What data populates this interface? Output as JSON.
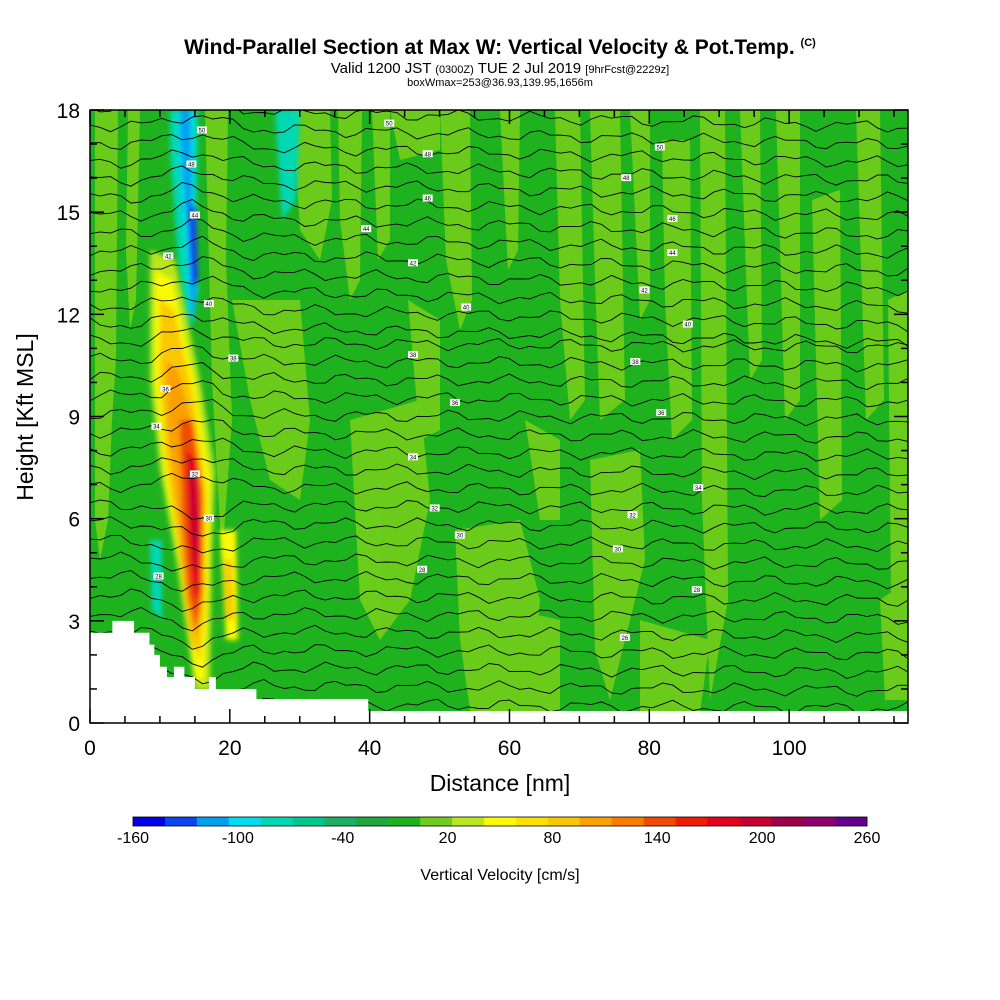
{
  "title": {
    "main": "Wind-Parallel Section at Max W: Vertical Velocity & Pot.Temp.",
    "copyright": "(C)",
    "valid_prefix": "Valid 1200 JST",
    "valid_utc": "(0300Z)",
    "valid_date": "TUE 2 Jul 2019",
    "forecast": "[9hrFcst@2229z]",
    "box_wmax": "boxWmax=253@36.93,139.95,1656m"
  },
  "colors": {
    "terrain": "#ffffff",
    "contour": "#000000",
    "background_w": "#1fb21f",
    "light_w": "#6fcd1b"
  },
  "chart_data": {
    "type": "heatmap",
    "xlabel": "Distance [nm]",
    "ylabel": "Height [Kft MSL]",
    "xlim": [
      0,
      117
    ],
    "ylim": [
      0,
      18
    ],
    "x_ticks": [
      0,
      20,
      40,
      60,
      80,
      100
    ],
    "y_ticks": [
      0,
      3,
      6,
      9,
      12,
      15,
      18
    ],
    "colorbar": {
      "label": "Vertical Velocity [cm/s]",
      "min": -160,
      "max": 260,
      "tick_values": [
        -160,
        -100,
        -40,
        20,
        80,
        140,
        200,
        260
      ],
      "tick_labels": [
        "-160",
        "-100",
        "-40",
        "20",
        "80",
        "140",
        "200",
        "260"
      ],
      "colors": [
        "#0000e6",
        "#0a46f0",
        "#00a0f0",
        "#00dcf0",
        "#00d8b4",
        "#00c88c",
        "#1cb064",
        "#1fa63c",
        "#1fb21f",
        "#6fcd1b",
        "#b9e61e",
        "#fafa00",
        "#fae100",
        "#fac800",
        "#faa000",
        "#fa7d00",
        "#f04b00",
        "#f01e00",
        "#e6001e",
        "#c80032",
        "#a0004b",
        "#8c006e",
        "#64008c"
      ]
    },
    "terrain_profile": [
      {
        "x": 0,
        "z": 2.65
      },
      {
        "x": 3.2,
        "z": 2.65
      },
      {
        "x": 3.2,
        "z": 3.0
      },
      {
        "x": 6.3,
        "z": 3.0
      },
      {
        "x": 6.3,
        "z": 2.65
      },
      {
        "x": 8.5,
        "z": 2.65
      },
      {
        "x": 8.5,
        "z": 2.3
      },
      {
        "x": 9.2,
        "z": 2.3
      },
      {
        "x": 9.2,
        "z": 2.0
      },
      {
        "x": 10.0,
        "z": 2.0
      },
      {
        "x": 10.0,
        "z": 1.65
      },
      {
        "x": 11.0,
        "z": 1.65
      },
      {
        "x": 11.0,
        "z": 1.35
      },
      {
        "x": 12.0,
        "z": 1.35
      },
      {
        "x": 12.0,
        "z": 1.65
      },
      {
        "x": 13.5,
        "z": 1.65
      },
      {
        "x": 13.5,
        "z": 1.35
      },
      {
        "x": 15.0,
        "z": 1.35
      },
      {
        "x": 15.0,
        "z": 1.0
      },
      {
        "x": 17.0,
        "z": 1.0
      },
      {
        "x": 17.0,
        "z": 1.35
      },
      {
        "x": 18.0,
        "z": 1.35
      },
      {
        "x": 18.0,
        "z": 1.0
      },
      {
        "x": 23.8,
        "z": 1.0
      },
      {
        "x": 23.8,
        "z": 0.7
      },
      {
        "x": 39.8,
        "z": 0.7
      },
      {
        "x": 39.8,
        "z": 0.35
      },
      {
        "x": 117,
        "z": 0.35
      }
    ],
    "updraft_max": {
      "x": 15.2,
      "z": 7.3,
      "w": 253
    },
    "theta_labels": [
      {
        "x": 16.0,
        "z": 17.4,
        "text": "50"
      },
      {
        "x": 14.5,
        "z": 16.4,
        "text": "48"
      },
      {
        "x": 15.0,
        "z": 14.9,
        "text": "44"
      },
      {
        "x": 11.2,
        "z": 13.7,
        "text": "42"
      },
      {
        "x": 17.0,
        "z": 12.3,
        "text": "40"
      },
      {
        "x": 20.5,
        "z": 10.7,
        "text": "38"
      },
      {
        "x": 10.8,
        "z": 9.8,
        "text": "36"
      },
      {
        "x": 9.5,
        "z": 8.7,
        "text": "34"
      },
      {
        "x": 15.0,
        "z": 7.3,
        "text": "32"
      },
      {
        "x": 17.0,
        "z": 6.0,
        "text": "30"
      },
      {
        "x": 9.8,
        "z": 4.3,
        "text": "28"
      },
      {
        "x": 42.8,
        "z": 17.6,
        "text": "50"
      },
      {
        "x": 48.3,
        "z": 16.7,
        "text": "48"
      },
      {
        "x": 48.3,
        "z": 15.4,
        "text": "46"
      },
      {
        "x": 39.5,
        "z": 14.5,
        "text": "44"
      },
      {
        "x": 46.2,
        "z": 13.5,
        "text": "42"
      },
      {
        "x": 53.8,
        "z": 12.2,
        "text": "40"
      },
      {
        "x": 46.2,
        "z": 10.8,
        "text": "38"
      },
      {
        "x": 52.2,
        "z": 9.4,
        "text": "36"
      },
      {
        "x": 46.2,
        "z": 7.8,
        "text": "34"
      },
      {
        "x": 49.3,
        "z": 6.3,
        "text": "32"
      },
      {
        "x": 52.9,
        "z": 5.5,
        "text": "30"
      },
      {
        "x": 47.5,
        "z": 4.5,
        "text": "28"
      },
      {
        "x": 81.5,
        "z": 16.9,
        "text": "50"
      },
      {
        "x": 76.7,
        "z": 16.0,
        "text": "48"
      },
      {
        "x": 83.3,
        "z": 14.8,
        "text": "46"
      },
      {
        "x": 83.3,
        "z": 13.8,
        "text": "44"
      },
      {
        "x": 79.3,
        "z": 12.7,
        "text": "42"
      },
      {
        "x": 85.5,
        "z": 11.7,
        "text": "40"
      },
      {
        "x": 78.0,
        "z": 10.6,
        "text": "38"
      },
      {
        "x": 81.7,
        "z": 9.1,
        "text": "36"
      },
      {
        "x": 87.0,
        "z": 6.9,
        "text": "34"
      },
      {
        "x": 77.6,
        "z": 6.1,
        "text": "32"
      },
      {
        "x": 75.5,
        "z": 5.1,
        "text": "30"
      },
      {
        "x": 86.8,
        "z": 3.9,
        "text": "28"
      },
      {
        "x": 76.5,
        "z": 2.5,
        "text": "26"
      }
    ]
  }
}
